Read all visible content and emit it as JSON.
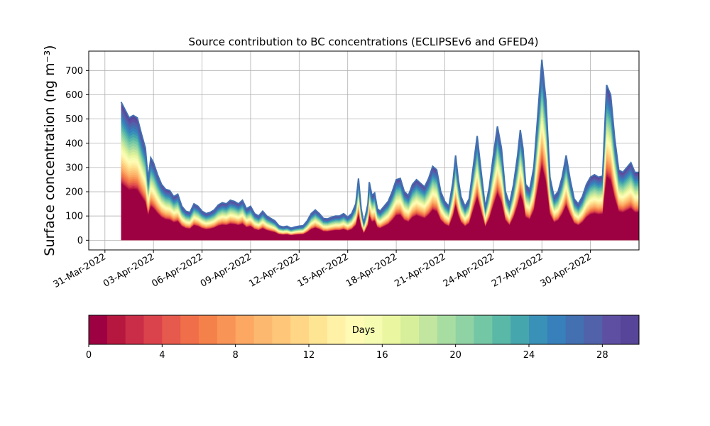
{
  "chart_data": {
    "type": "area",
    "title": "Source contribution to BC concentrations (ECLIPSEv6 and GFED4)",
    "ylabel": "Surface concentration (ng m⁻³)",
    "xlabel": "",
    "ylim": [
      -40,
      780
    ],
    "xlim_days": [
      "2022-03-30",
      "2022-05-03"
    ],
    "yticks": [
      0,
      100,
      200,
      300,
      400,
      500,
      600,
      700
    ],
    "xtick_labels": [
      "31-Mar-2022",
      "03-Apr-2022",
      "06-Apr-2022",
      "09-Apr-2022",
      "12-Apr-2022",
      "15-Apr-2022",
      "18-Apr-2022",
      "21-Apr-2022",
      "24-Apr-2022",
      "27-Apr-2022",
      "30-Apr-2022"
    ],
    "grid": true,
    "stack_bands": 30,
    "series_total": {
      "name": "",
      "points": [
        [
          "2022-04-01T00",
          570
        ],
        [
          "2022-04-01T12",
          505
        ],
        [
          "2022-04-01T18",
          515
        ],
        [
          "2022-04-02T00",
          505
        ],
        [
          "2022-04-02T06",
          440
        ],
        [
          "2022-04-02T12",
          380
        ],
        [
          "2022-04-02T16",
          250
        ],
        [
          "2022-04-02T20",
          340
        ],
        [
          "2022-04-03T00",
          320
        ],
        [
          "2022-04-03T06",
          270
        ],
        [
          "2022-04-03T12",
          230
        ],
        [
          "2022-04-03T18",
          210
        ],
        [
          "2022-04-04T00",
          205
        ],
        [
          "2022-04-04T06",
          180
        ],
        [
          "2022-04-04T12",
          190
        ],
        [
          "2022-04-04T18",
          140
        ],
        [
          "2022-04-05T00",
          120
        ],
        [
          "2022-04-05T06",
          115
        ],
        [
          "2022-04-05T12",
          150
        ],
        [
          "2022-04-05T18",
          140
        ],
        [
          "2022-04-06T00",
          120
        ],
        [
          "2022-04-06T06",
          110
        ],
        [
          "2022-04-06T12",
          115
        ],
        [
          "2022-04-06T18",
          125
        ],
        [
          "2022-04-07T00",
          145
        ],
        [
          "2022-04-07T06",
          155
        ],
        [
          "2022-04-07T12",
          150
        ],
        [
          "2022-04-07T18",
          165
        ],
        [
          "2022-04-08T00",
          160
        ],
        [
          "2022-04-08T06",
          150
        ],
        [
          "2022-04-08T12",
          165
        ],
        [
          "2022-04-08T18",
          130
        ],
        [
          "2022-04-09T00",
          140
        ],
        [
          "2022-04-09T06",
          110
        ],
        [
          "2022-04-09T12",
          100
        ],
        [
          "2022-04-09T18",
          120
        ],
        [
          "2022-04-10T00",
          100
        ],
        [
          "2022-04-10T06",
          90
        ],
        [
          "2022-04-10T12",
          80
        ],
        [
          "2022-04-10T18",
          60
        ],
        [
          "2022-04-11T00",
          55
        ],
        [
          "2022-04-11T06",
          58
        ],
        [
          "2022-04-11T12",
          50
        ],
        [
          "2022-04-11T18",
          55
        ],
        [
          "2022-04-12T00",
          58
        ],
        [
          "2022-04-12T06",
          60
        ],
        [
          "2022-04-12T12",
          80
        ],
        [
          "2022-04-12T18",
          110
        ],
        [
          "2022-04-13T00",
          125
        ],
        [
          "2022-04-13T06",
          110
        ],
        [
          "2022-04-13T12",
          90
        ],
        [
          "2022-04-13T18",
          88
        ],
        [
          "2022-04-14T00",
          95
        ],
        [
          "2022-04-14T06",
          100
        ],
        [
          "2022-04-14T12",
          100
        ],
        [
          "2022-04-14T18",
          110
        ],
        [
          "2022-04-15T00",
          95
        ],
        [
          "2022-04-15T06",
          110
        ],
        [
          "2022-04-15T12",
          150
        ],
        [
          "2022-04-15T16",
          255
        ],
        [
          "2022-04-15T20",
          130
        ],
        [
          "2022-04-16T00",
          70
        ],
        [
          "2022-04-16T06",
          150
        ],
        [
          "2022-04-16T08",
          240
        ],
        [
          "2022-04-16T12",
          185
        ],
        [
          "2022-04-16T16",
          195
        ],
        [
          "2022-04-16T20",
          130
        ],
        [
          "2022-04-17T00",
          120
        ],
        [
          "2022-04-17T06",
          140
        ],
        [
          "2022-04-17T12",
          160
        ],
        [
          "2022-04-17T18",
          200
        ],
        [
          "2022-04-18T00",
          250
        ],
        [
          "2022-04-18T06",
          255
        ],
        [
          "2022-04-18T12",
          200
        ],
        [
          "2022-04-18T18",
          185
        ],
        [
          "2022-04-19T00",
          230
        ],
        [
          "2022-04-19T06",
          250
        ],
        [
          "2022-04-19T12",
          235
        ],
        [
          "2022-04-19T18",
          220
        ],
        [
          "2022-04-20T00",
          255
        ],
        [
          "2022-04-20T06",
          305
        ],
        [
          "2022-04-20T12",
          290
        ],
        [
          "2022-04-20T18",
          200
        ],
        [
          "2022-04-21T00",
          160
        ],
        [
          "2022-04-21T06",
          140
        ],
        [
          "2022-04-21T12",
          240
        ],
        [
          "2022-04-21T16",
          350
        ],
        [
          "2022-04-21T20",
          250
        ],
        [
          "2022-04-22T00",
          180
        ],
        [
          "2022-04-22T06",
          140
        ],
        [
          "2022-04-22T12",
          170
        ],
        [
          "2022-04-22T18",
          300
        ],
        [
          "2022-04-23T00",
          430
        ],
        [
          "2022-04-23T06",
          280
        ],
        [
          "2022-04-23T12",
          135
        ],
        [
          "2022-04-23T18",
          220
        ],
        [
          "2022-04-24T00",
          350
        ],
        [
          "2022-04-24T06",
          470
        ],
        [
          "2022-04-24T12",
          380
        ],
        [
          "2022-04-24T18",
          200
        ],
        [
          "2022-04-25T00",
          150
        ],
        [
          "2022-04-25T06",
          230
        ],
        [
          "2022-04-25T12",
          350
        ],
        [
          "2022-04-25T16",
          455
        ],
        [
          "2022-04-25T20",
          380
        ],
        [
          "2022-04-26T00",
          230
        ],
        [
          "2022-04-26T06",
          210
        ],
        [
          "2022-04-26T12",
          300
        ],
        [
          "2022-04-26T18",
          520
        ],
        [
          "2022-04-27T00",
          745
        ],
        [
          "2022-04-27T06",
          580
        ],
        [
          "2022-04-27T12",
          260
        ],
        [
          "2022-04-27T18",
          180
        ],
        [
          "2022-04-28T00",
          200
        ],
        [
          "2022-04-28T06",
          260
        ],
        [
          "2022-04-28T12",
          350
        ],
        [
          "2022-04-28T18",
          250
        ],
        [
          "2022-04-29T00",
          170
        ],
        [
          "2022-04-29T06",
          150
        ],
        [
          "2022-04-29T12",
          180
        ],
        [
          "2022-04-29T18",
          230
        ],
        [
          "2022-04-30T00",
          260
        ],
        [
          "2022-04-30T06",
          270
        ],
        [
          "2022-04-30T12",
          260
        ],
        [
          "2022-04-30T18",
          265
        ],
        [
          "2022-05-01T00",
          640
        ],
        [
          "2022-05-01T06",
          600
        ],
        [
          "2022-05-01T12",
          420
        ],
        [
          "2022-05-01T18",
          290
        ],
        [
          "2022-05-02T00",
          280
        ],
        [
          "2022-05-02T06",
          300
        ],
        [
          "2022-05-02T12",
          320
        ],
        [
          "2022-05-02T18",
          280
        ],
        [
          "2022-05-03T00",
          280
        ],
        [
          "2022-05-03T06",
          270
        ],
        [
          "2022-05-03T12",
          250
        ]
      ]
    }
  },
  "colorbar": {
    "label": "Days",
    "min": 0,
    "max": 30,
    "tick_labels": [
      "0",
      "4",
      "8",
      "12",
      "16",
      "20",
      "24",
      "28"
    ],
    "tick_values": [
      0,
      4,
      8,
      12,
      16,
      20,
      24,
      28
    ],
    "colors": [
      "#9e0142",
      "#b5173f",
      "#c92d48",
      "#da434b",
      "#e55a4c",
      "#f06f4a",
      "#f4814a",
      "#f89456",
      "#fca762",
      "#fdb86f",
      "#fdc679",
      "#fed686",
      "#fee593",
      "#fff1a6",
      "#fffbb5",
      "#f6fbb2",
      "#eaf6a0",
      "#d7ef9b",
      "#c2e69f",
      "#a8dda2",
      "#8fd2a4",
      "#74c7a5",
      "#5ab8a7",
      "#46a6ad",
      "#3a91b8",
      "#3780bb",
      "#4270b1",
      "#5161aa",
      "#5e4fa2",
      "#564598"
    ]
  }
}
